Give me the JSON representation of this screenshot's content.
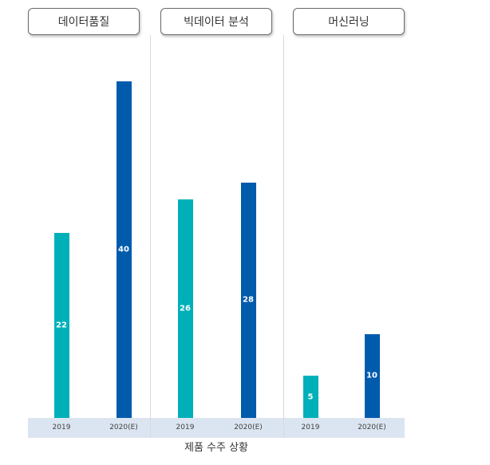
{
  "chart_data": {
    "type": "bar",
    "caption": "제품 수주 상황",
    "panels": [
      {
        "title": "데이터품질",
        "categories": [
          "2019",
          "2020(E)"
        ],
        "values": [
          22,
          40
        ]
      },
      {
        "title": "빅데이터 분석",
        "categories": [
          "2019",
          "2020(E)"
        ],
        "values": [
          26,
          28
        ]
      },
      {
        "title": "머신러닝",
        "categories": [
          "2019",
          "2020(E)"
        ],
        "values": [
          5,
          10
        ]
      }
    ],
    "ylim": [
      0,
      40
    ],
    "colors": {
      "2019": "#00b0b9",
      "2020(E)": "#005bac"
    },
    "grid": false
  }
}
